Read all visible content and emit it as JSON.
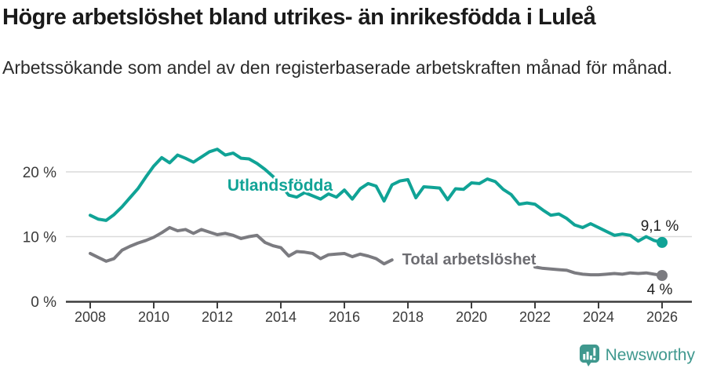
{
  "header": {
    "title": "Högre arbetslöshet bland utrikes- än inrikesfödda i Luleå",
    "subtitle": "Arbetssökande som andel av den registerbaserade arbetskraften månad för månad."
  },
  "colors": {
    "teal": "#10a396",
    "gray": "#7b7b80",
    "gray_label": "#6d6d72",
    "grid": "#dadada",
    "axis": "#3d3d3d",
    "tick_text": "#3a3a3a",
    "value_text": "#1f1f1f",
    "logo_teal": "#3f988e"
  },
  "chart_data": {
    "type": "line",
    "title": "Högre arbetslöshet bland utrikes- än inrikesfödda i Luleå",
    "subtitle": "Arbetssökande som andel av den registerbaserade arbetskraften månad för månad.",
    "xlabel": "",
    "ylabel": "",
    "grid": "horizontal",
    "legend_position": "inline-labels",
    "xlim": [
      2007.2,
      2026.9
    ],
    "ylim": [
      0,
      26
    ],
    "xticks": [
      2008,
      2010,
      2012,
      2014,
      2016,
      2018,
      2020,
      2022,
      2024,
      2026
    ],
    "yticks": [
      {
        "value": 0,
        "label": "0 %"
      },
      {
        "value": 10,
        "label": "10 %"
      },
      {
        "value": 20,
        "label": "20 %"
      }
    ],
    "x": [
      2008,
      2008.25,
      2008.5,
      2008.75,
      2009,
      2009.25,
      2009.5,
      2009.75,
      2010,
      2010.25,
      2010.5,
      2010.75,
      2011,
      2011.25,
      2011.5,
      2011.75,
      2012,
      2012.25,
      2012.5,
      2012.75,
      2013,
      2013.25,
      2013.5,
      2013.75,
      2014,
      2014.25,
      2014.5,
      2014.75,
      2015,
      2015.25,
      2015.5,
      2015.75,
      2016,
      2016.25,
      2016.5,
      2016.75,
      2017,
      2017.25,
      2017.5,
      2017.75,
      2018,
      2018.25,
      2018.5,
      2018.75,
      2019,
      2019.25,
      2019.5,
      2019.75,
      2020,
      2020.25,
      2020.5,
      2020.75,
      2021,
      2021.25,
      2021.5,
      2021.75,
      2022,
      2022.25,
      2022.5,
      2022.75,
      2023,
      2023.25,
      2023.5,
      2023.75,
      2024,
      2024.25,
      2024.5,
      2024.75,
      2025,
      2025.25,
      2025.5,
      2025.75,
      2026
    ],
    "series": [
      {
        "name": "Utlandsfödda",
        "color": "#10a396",
        "label_color": "#10a396",
        "end_label": "9,1 %",
        "values": [
          13.3,
          12.7,
          12.5,
          13.4,
          14.6,
          16,
          17.4,
          19.2,
          20.9,
          22.2,
          21.4,
          22.6,
          22.1,
          21.5,
          22.3,
          23.1,
          23.5,
          22.6,
          22.9,
          22.1,
          22,
          21.3,
          20.4,
          19.3,
          18,
          16.4,
          16.1,
          16.8,
          16.3,
          15.8,
          16.6,
          16.1,
          17.2,
          15.8,
          17.4,
          18.2,
          17.8,
          15.5,
          18,
          18.6,
          18.8,
          16,
          17.7,
          17.6,
          17.5,
          15.7,
          17.4,
          17.3,
          18.3,
          18.2,
          18.9,
          18.5,
          17.3,
          16.5,
          15,
          15.2,
          15,
          14.1,
          13.3,
          13.5,
          12.8,
          11.8,
          11.4,
          12,
          11.4,
          10.8,
          10.2,
          10.4,
          10.2,
          9.3,
          10,
          9.4,
          9.1
        ]
      },
      {
        "name": "Total arbetslöshet",
        "color": "#7b7b80",
        "label_color": "#6d6d72",
        "end_label": "4 %",
        "note": "line hidden behind its series label between 2017.75 and 2021.75",
        "values": [
          7.4,
          6.8,
          6.2,
          6.6,
          7.9,
          8.5,
          9,
          9.4,
          9.9,
          10.6,
          11.4,
          10.9,
          11.1,
          10.5,
          11.1,
          10.7,
          10.3,
          10.5,
          10.2,
          9.7,
          10,
          10.2,
          9.1,
          8.6,
          8.3,
          7,
          7.7,
          7.6,
          7.4,
          6.6,
          7.2,
          7.3,
          7.4,
          6.9,
          7.3,
          7,
          6.6,
          5.8,
          6.4,
          null,
          null,
          null,
          null,
          null,
          null,
          null,
          null,
          null,
          null,
          null,
          null,
          null,
          null,
          null,
          null,
          null,
          5.3,
          5.1,
          5,
          4.9,
          4.8,
          4.4,
          4.2,
          4.1,
          4.1,
          4.2,
          4.3,
          4.2,
          4.4,
          4.3,
          4.4,
          4.2,
          4
        ]
      }
    ]
  },
  "footer": {
    "brand": "Newsworthy"
  }
}
